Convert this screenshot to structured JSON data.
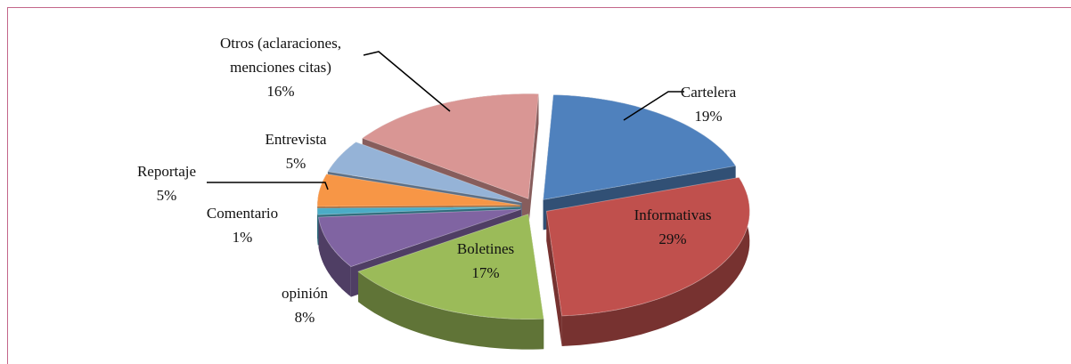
{
  "chart_data": {
    "type": "pie3d",
    "categories": [
      "Cartelera",
      "Informativas",
      "Boletines",
      "opinión",
      "Comentario",
      "Reportaje",
      "Entrevista",
      "Otros (aclaraciones, menciones citas)"
    ],
    "values": [
      19,
      29,
      17,
      8,
      1,
      5,
      5,
      16
    ],
    "value_labels": [
      "19%",
      "29%",
      "17%",
      "8%",
      "1%",
      "5%",
      "5%",
      "16%"
    ],
    "colors": [
      "#4f81bd",
      "#c0504d",
      "#9bbb59",
      "#8064a2",
      "#4bacc6",
      "#f79646",
      "#95b3d7",
      "#d99694"
    ]
  }
}
